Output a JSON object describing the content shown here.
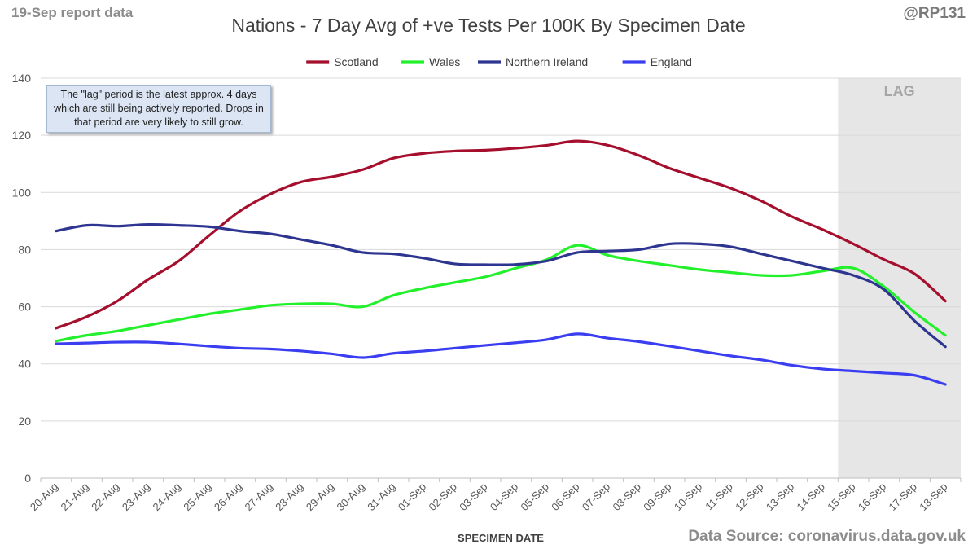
{
  "header": {
    "report_tag": "19-Sep report data",
    "title": "Nations - 7 Day Avg of +ve Tests Per 100K By Specimen Date",
    "handle": "@RP131"
  },
  "footer": {
    "source": "Data Source: coronavirus.data.gov.uk"
  },
  "note": {
    "text": "The \"lag\" period is the latest approx. 4 days which are still being actively reported.  Drops in that period are very likely to still grow."
  },
  "colors": {
    "scotland": "#a50f2d",
    "wales": "#22f02a",
    "northern_ireland": "#2e3590",
    "england": "#3a3ef0",
    "lag_shade": "#e6e6e6",
    "grid": "#d9d9d9"
  },
  "chart_data": {
    "type": "line",
    "title": "Nations - 7 Day Avg of +ve Tests Per 100K By Specimen Date",
    "xlabel": "SPECIMEN DATE",
    "ylabel": "",
    "ylim": [
      0,
      140
    ],
    "yticks": [
      0,
      20,
      40,
      60,
      80,
      100,
      120,
      140
    ],
    "grid": true,
    "legend": "top-center",
    "categories": [
      "20-Aug",
      "21-Aug",
      "22-Aug",
      "23-Aug",
      "24-Aug",
      "25-Aug",
      "26-Aug",
      "27-Aug",
      "28-Aug",
      "29-Aug",
      "30-Aug",
      "31-Aug",
      "01-Sep",
      "02-Sep",
      "03-Sep",
      "04-Sep",
      "05-Sep",
      "06-Sep",
      "07-Sep",
      "08-Sep",
      "09-Sep",
      "10-Sep",
      "11-Sep",
      "12-Sep",
      "13-Sep",
      "14-Sep",
      "15-Sep",
      "16-Sep",
      "17-Sep",
      "18-Sep"
    ],
    "lag_region": {
      "from": "15-Sep",
      "label": "LAG"
    },
    "series": [
      {
        "name": "Scotland",
        "color_key": "scotland",
        "values": [
          52.5,
          56.5,
          62,
          69.5,
          76,
          85,
          93.5,
          99.5,
          103.7,
          105.5,
          108,
          112,
          113.7,
          114.5,
          114.8,
          115.5,
          116.5,
          118,
          116.5,
          113,
          108.5,
          105,
          101.5,
          97,
          91.5,
          87,
          82,
          76.5,
          71.5,
          62
        ]
      },
      {
        "name": "Wales",
        "color_key": "wales",
        "values": [
          48,
          50,
          51.5,
          53.5,
          55.5,
          57.5,
          59,
          60.5,
          61,
          61,
          60,
          64,
          66.5,
          68.5,
          70.5,
          73.5,
          76.5,
          81.5,
          78,
          76,
          74.5,
          73,
          72,
          71,
          71,
          72.5,
          73.5,
          67,
          58,
          50
        ]
      },
      {
        "name": "Northern Ireland",
        "color_key": "northern_ireland",
        "values": [
          86.5,
          88.5,
          88.2,
          88.8,
          88.5,
          88,
          86.5,
          85.5,
          83.5,
          81.5,
          79,
          78.5,
          77,
          75,
          74.7,
          74.8,
          76,
          79,
          79.5,
          80,
          82,
          82,
          81,
          78.5,
          76,
          73.5,
          71,
          66,
          55,
          46
        ]
      },
      {
        "name": "England",
        "color_key": "england",
        "values": [
          47,
          47.3,
          47.6,
          47.6,
          47,
          46.2,
          45.5,
          45.2,
          44.5,
          43.5,
          42.2,
          43.7,
          44.5,
          45.5,
          46.5,
          47.4,
          48.5,
          50.5,
          49,
          47.8,
          46.2,
          44.5,
          42.8,
          41.4,
          39.5,
          38.2,
          37.5,
          36.8,
          36,
          32.8
        ]
      }
    ]
  }
}
